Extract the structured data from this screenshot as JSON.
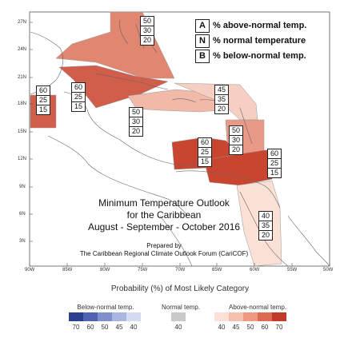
{
  "map": {
    "lat_labels": [
      "27N",
      "24N",
      "21N",
      "18N",
      "15N",
      "12N",
      "9N",
      "6N",
      "3N"
    ],
    "lon_labels": [
      "90W",
      "85W",
      "80W",
      "75W",
      "70W",
      "65W",
      "60W",
      "55W",
      "50W"
    ]
  },
  "key": [
    {
      "letter": "A",
      "text": "% above-normal temp."
    },
    {
      "letter": "N",
      "text": "% normal temperature"
    },
    {
      "letter": "B",
      "text": "% below-normal temp."
    }
  ],
  "regions": [
    {
      "name": "bahamas",
      "values": [
        "50",
        "30",
        "20"
      ],
      "color": "#e0806a"
    },
    {
      "name": "cuba",
      "values": [
        "60",
        "25",
        "15"
      ],
      "color": "#d15e4a"
    },
    {
      "name": "jamaica",
      "values": [
        "50",
        "30",
        "20"
      ],
      "color": "#f2b8a8"
    },
    {
      "name": "belize",
      "values": [
        "60",
        "25",
        "15"
      ],
      "color": "#d15e4a"
    },
    {
      "name": "eastern-caribbean",
      "values": [
        "45",
        "35",
        "20"
      ],
      "color": "#f7cfc2"
    },
    {
      "name": "lesser-antilles",
      "values": [
        "50",
        "30",
        "20"
      ],
      "color": "#e89a86"
    },
    {
      "name": "colombia-north",
      "values": [
        "60",
        "25",
        "15"
      ],
      "color": "#c9452f"
    },
    {
      "name": "venezuela",
      "values": [
        "60",
        "25",
        "15"
      ],
      "color": "#c9452f"
    },
    {
      "name": "guianas",
      "values": [
        "40",
        "35",
        "20"
      ],
      "color": "#fbe0d6"
    }
  ],
  "title": {
    "line1": "Minimum Temperature Outlook",
    "line2": "for the Caribbean",
    "line3": "August - September - October 2016"
  },
  "credit": {
    "line1": "Prepared by",
    "line2": "The Caribbean Regional Climate Outlook Forum (CariCOF)"
  },
  "legend": {
    "title": "Probability (%) of Most Likely Category",
    "below_label": "Below-normal temp.",
    "normal_label": "Normal temp.",
    "above_label": "Above-normal temp.",
    "below": [
      {
        "value": "70",
        "color": "#2b3f8f"
      },
      {
        "value": "60",
        "color": "#4f63b0"
      },
      {
        "value": "50",
        "color": "#7f8fcc"
      },
      {
        "value": "45",
        "color": "#aab5e0"
      },
      {
        "value": "40",
        "color": "#d4daf0"
      }
    ],
    "normal": [
      {
        "value": "40",
        "color": "#c9c9c9"
      }
    ],
    "above": [
      {
        "value": "40",
        "color": "#fbe0d6"
      },
      {
        "value": "45",
        "color": "#f7c0ae"
      },
      {
        "value": "50",
        "color": "#ee9a82"
      },
      {
        "value": "60",
        "color": "#dd6a52"
      },
      {
        "value": "70",
        "color": "#c03a26"
      }
    ]
  }
}
